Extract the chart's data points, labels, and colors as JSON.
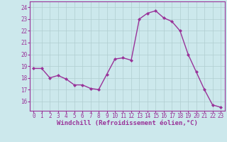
{
  "x": [
    0,
    1,
    2,
    3,
    4,
    5,
    6,
    7,
    8,
    9,
    10,
    11,
    12,
    13,
    14,
    15,
    16,
    17,
    18,
    19,
    20,
    21,
    22,
    23
  ],
  "y": [
    18.8,
    18.8,
    18.0,
    18.2,
    17.9,
    17.4,
    17.4,
    17.1,
    17.0,
    18.3,
    19.6,
    19.7,
    19.5,
    23.0,
    23.5,
    23.7,
    23.1,
    22.8,
    22.0,
    20.0,
    18.5,
    17.0,
    15.7,
    15.5
  ],
  "line_color": "#993399",
  "marker": "D",
  "markersize": 2.0,
  "linewidth": 1.0,
  "bg_color": "#cce8ec",
  "grid_color": "#b0cdd0",
  "xlabel": "Windchill (Refroidissement éolien,°C)",
  "xlabel_fontsize": 6.5,
  "xlabel_color": "#993399",
  "xtick_labels": [
    "0",
    "1",
    "2",
    "3",
    "4",
    "5",
    "6",
    "7",
    "8",
    "9",
    "10",
    "11",
    "12",
    "13",
    "14",
    "15",
    "16",
    "17",
    "18",
    "19",
    "20",
    "21",
    "22",
    "23"
  ],
  "ytick_values": [
    16,
    17,
    18,
    19,
    20,
    21,
    22,
    23,
    24
  ],
  "ytick_labels": [
    "16",
    "17",
    "18",
    "19",
    "20",
    "21",
    "22",
    "23",
    "24"
  ],
  "ylim": [
    15.2,
    24.5
  ],
  "xlim": [
    -0.5,
    23.5
  ],
  "tick_color": "#993399",
  "tick_fontsize": 5.5
}
